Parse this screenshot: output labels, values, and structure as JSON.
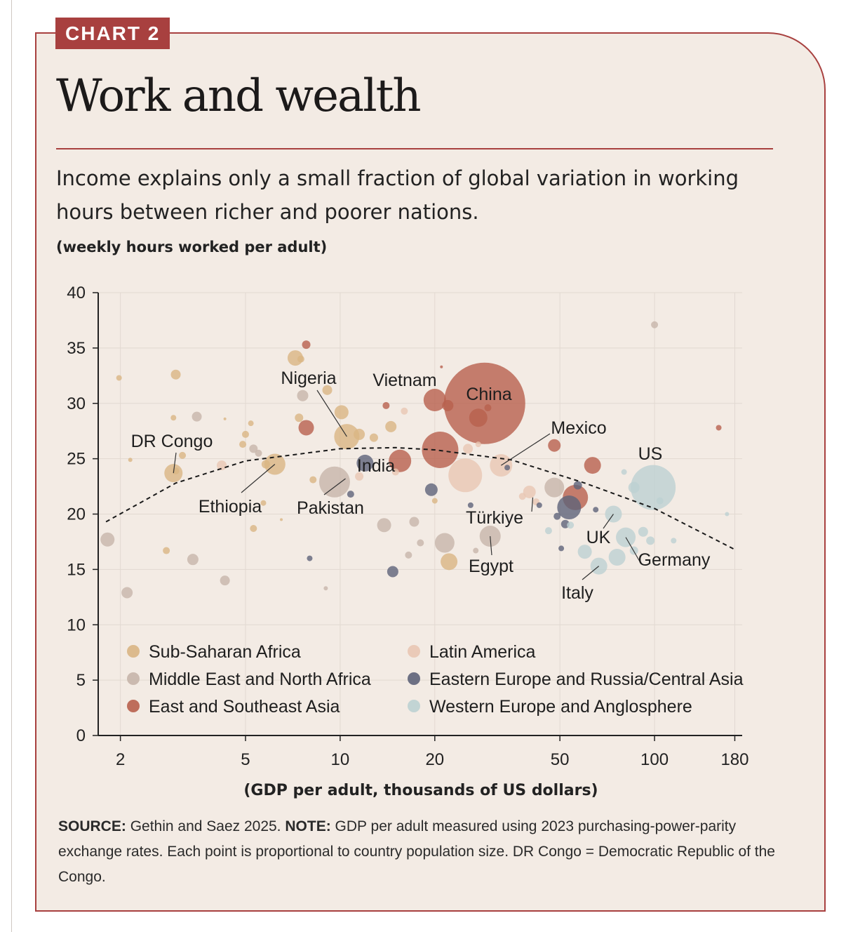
{
  "badge": "CHART 2",
  "title": "Work and wealth",
  "subtitle": "Income explains only a small fraction of global variation in working hours between richer and poorer nations.",
  "unit_label": "(weekly hours worked per adult)",
  "footer": {
    "source_label": "SOURCE:",
    "source_text": "Gethin and Saez 2025.",
    "note_label": "NOTE:",
    "note_text": "GDP per adult measured using 2023 purchasing-power-parity exchange rates. Each point is proportional to country population size. DR Congo = Democratic Republic of the Congo."
  },
  "chart_data": {
    "type": "scatter",
    "title": "Work and wealth",
    "xlabel": "(GDP per adult, thousands of US dollars)",
    "ylabel": "(weekly hours worked per adult)",
    "x_scale": "log",
    "xlim": [
      1.7,
      190
    ],
    "ylim": [
      0,
      40
    ],
    "x_ticks": [
      2,
      5,
      10,
      20,
      50,
      100,
      180
    ],
    "y_ticks": [
      0,
      5,
      10,
      15,
      20,
      25,
      30,
      35,
      40
    ],
    "grid": "vertical and horizontal, light",
    "legend_position": "bottom-left inside plot",
    "colors": {
      "ssa": "#d9b583",
      "mena": "#c7b5aa",
      "esa": "#b8604d",
      "latam": "#e9c7b3",
      "eeca": "#5e6379",
      "weu": "#bdd1d2"
    },
    "legend": [
      {
        "key": "ssa",
        "label": "Sub-Saharan Africa"
      },
      {
        "key": "mena",
        "label": "Middle East and North Africa"
      },
      {
        "key": "esa",
        "label": "East and Southeast Asia"
      },
      {
        "key": "latam",
        "label": "Latin America"
      },
      {
        "key": "eeca",
        "label": "Eastern Europe and Russia/Central Asia"
      },
      {
        "key": "weu",
        "label": "Western Europe and Anglosphere"
      }
    ],
    "trend": [
      [
        1.8,
        19.3
      ],
      [
        3,
        22.8
      ],
      [
        5,
        24.8
      ],
      [
        10,
        25.9
      ],
      [
        15,
        26.0
      ],
      [
        20,
        25.8
      ],
      [
        35,
        24.9
      ],
      [
        60,
        22.8
      ],
      [
        100,
        20.5
      ],
      [
        180,
        16.8
      ]
    ],
    "labels": [
      {
        "text": "DR Congo",
        "x": 2.95,
        "y": 23.7
      },
      {
        "text": "Ethiopia",
        "x": 6.2,
        "y": 24.5
      },
      {
        "text": "Nigeria",
        "x": 10.5,
        "y": 27.0
      },
      {
        "text": "Pakistan",
        "x": 10.4,
        "y": 23.2
      },
      {
        "text": "India",
        "x": 13.0,
        "y": 24.5
      },
      {
        "text": "Vietnam",
        "x": 20.0,
        "y": 30.3
      },
      {
        "text": "China",
        "x": 28.8,
        "y": 30.0
      },
      {
        "text": "Mexico",
        "x": 32.5,
        "y": 24.4
      },
      {
        "text": "Türkiye",
        "x": 41.0,
        "y": 21.5
      },
      {
        "text": "Egypt",
        "x": 30.0,
        "y": 18.0
      },
      {
        "text": "US",
        "x": 99.0,
        "y": 22.4
      },
      {
        "text": "UK",
        "x": 74.0,
        "y": 20.0
      },
      {
        "text": "Germany",
        "x": 81.0,
        "y": 17.9
      },
      {
        "text": "Italy",
        "x": 66.5,
        "y": 15.3
      }
    ],
    "points": [
      {
        "x": 1.98,
        "y": 32.3,
        "r": 4,
        "g": "ssa"
      },
      {
        "x": 3.0,
        "y": 32.6,
        "r": 7,
        "g": "ssa"
      },
      {
        "x": 2.95,
        "y": 23.7,
        "r": 13,
        "g": "ssa"
      },
      {
        "x": 3.0,
        "y": 23.9,
        "r": 5,
        "g": "ssa"
      },
      {
        "x": 3.15,
        "y": 25.3,
        "r": 5,
        "g": "ssa"
      },
      {
        "x": 2.95,
        "y": 28.7,
        "r": 4,
        "g": "ssa"
      },
      {
        "x": 2.15,
        "y": 24.9,
        "r": 3,
        "g": "ssa"
      },
      {
        "x": 2.8,
        "y": 16.7,
        "r": 5,
        "g": "ssa"
      },
      {
        "x": 4.3,
        "y": 28.6,
        "r": 2,
        "g": "ssa"
      },
      {
        "x": 5.0,
        "y": 27.2,
        "r": 5,
        "g": "ssa"
      },
      {
        "x": 5.2,
        "y": 28.2,
        "r": 4,
        "g": "ssa"
      },
      {
        "x": 4.9,
        "y": 26.3,
        "r": 5,
        "g": "ssa"
      },
      {
        "x": 6.2,
        "y": 24.5,
        "r": 15,
        "g": "ssa"
      },
      {
        "x": 5.8,
        "y": 24.5,
        "r": 6,
        "g": "ssa"
      },
      {
        "x": 5.3,
        "y": 18.7,
        "r": 5,
        "g": "ssa"
      },
      {
        "x": 5.7,
        "y": 21.0,
        "r": 4,
        "g": "ssa"
      },
      {
        "x": 7.2,
        "y": 34.1,
        "r": 11,
        "g": "ssa"
      },
      {
        "x": 7.5,
        "y": 34.0,
        "r": 5,
        "g": "ssa"
      },
      {
        "x": 7.4,
        "y": 28.7,
        "r": 6,
        "g": "ssa"
      },
      {
        "x": 9.1,
        "y": 31.2,
        "r": 7,
        "g": "ssa"
      },
      {
        "x": 10.1,
        "y": 29.2,
        "r": 10,
        "g": "ssa"
      },
      {
        "x": 10.5,
        "y": 27.0,
        "r": 18,
        "g": "ssa"
      },
      {
        "x": 11.5,
        "y": 27.2,
        "r": 8,
        "g": "ssa"
      },
      {
        "x": 8.2,
        "y": 23.1,
        "r": 5,
        "g": "ssa"
      },
      {
        "x": 12.8,
        "y": 26.9,
        "r": 6,
        "g": "ssa"
      },
      {
        "x": 14.5,
        "y": 27.9,
        "r": 8,
        "g": "ssa"
      },
      {
        "x": 22.2,
        "y": 15.7,
        "r": 12,
        "g": "ssa"
      },
      {
        "x": 20.0,
        "y": 21.2,
        "r": 4,
        "g": "ssa"
      },
      {
        "x": 6.5,
        "y": 19.5,
        "r": 2,
        "g": "ssa"
      },
      {
        "x": 1.82,
        "y": 17.7,
        "r": 10,
        "g": "mena"
      },
      {
        "x": 2.1,
        "y": 12.9,
        "r": 8,
        "g": "mena"
      },
      {
        "x": 3.4,
        "y": 15.9,
        "r": 8,
        "g": "mena"
      },
      {
        "x": 3.5,
        "y": 28.8,
        "r": 7,
        "g": "mena"
      },
      {
        "x": 4.3,
        "y": 14.0,
        "r": 7,
        "g": "mena"
      },
      {
        "x": 5.3,
        "y": 25.9,
        "r": 6,
        "g": "mena"
      },
      {
        "x": 5.5,
        "y": 25.5,
        "r": 5,
        "g": "mena"
      },
      {
        "x": 7.6,
        "y": 30.7,
        "r": 8,
        "g": "mena"
      },
      {
        "x": 9.6,
        "y": 22.9,
        "r": 22,
        "g": "mena"
      },
      {
        "x": 13.8,
        "y": 19.0,
        "r": 10,
        "g": "mena"
      },
      {
        "x": 16.5,
        "y": 16.3,
        "r": 5,
        "g": "mena"
      },
      {
        "x": 17.2,
        "y": 19.3,
        "r": 7,
        "g": "mena"
      },
      {
        "x": 18.0,
        "y": 17.4,
        "r": 5,
        "g": "mena"
      },
      {
        "x": 21.5,
        "y": 17.4,
        "r": 14,
        "g": "mena"
      },
      {
        "x": 30.0,
        "y": 18.0,
        "r": 15,
        "g": "mena"
      },
      {
        "x": 27.0,
        "y": 16.7,
        "r": 4,
        "g": "mena"
      },
      {
        "x": 48.0,
        "y": 22.4,
        "r": 14,
        "g": "mena"
      },
      {
        "x": 100.0,
        "y": 37.1,
        "r": 5,
        "g": "mena"
      },
      {
        "x": 9.0,
        "y": 13.3,
        "r": 3,
        "g": "mena"
      },
      {
        "x": 7.8,
        "y": 35.3,
        "r": 6,
        "g": "esa"
      },
      {
        "x": 7.8,
        "y": 27.8,
        "r": 11,
        "g": "esa"
      },
      {
        "x": 15.5,
        "y": 24.8,
        "r": 16,
        "g": "esa"
      },
      {
        "x": 14.0,
        "y": 29.8,
        "r": 5,
        "g": "esa"
      },
      {
        "x": 20.0,
        "y": 30.3,
        "r": 16,
        "g": "esa"
      },
      {
        "x": 22.0,
        "y": 29.8,
        "r": 8,
        "g": "esa"
      },
      {
        "x": 20.8,
        "y": 25.8,
        "r": 26,
        "g": "esa"
      },
      {
        "x": 28.8,
        "y": 30.0,
        "r": 58,
        "g": "esa"
      },
      {
        "x": 27.5,
        "y": 28.7,
        "r": 13,
        "g": "esa"
      },
      {
        "x": 29.5,
        "y": 29.6,
        "r": 5,
        "g": "esa"
      },
      {
        "x": 48.0,
        "y": 26.2,
        "r": 9,
        "g": "esa"
      },
      {
        "x": 56.0,
        "y": 21.5,
        "r": 18,
        "g": "esa"
      },
      {
        "x": 63.5,
        "y": 24.4,
        "r": 12,
        "g": "esa"
      },
      {
        "x": 160.0,
        "y": 27.8,
        "r": 4,
        "g": "esa"
      },
      {
        "x": 21.0,
        "y": 33.3,
        "r": 2,
        "g": "esa"
      },
      {
        "x": 4.2,
        "y": 24.4,
        "r": 7,
        "g": "latam"
      },
      {
        "x": 11.5,
        "y": 23.4,
        "r": 6,
        "g": "latam"
      },
      {
        "x": 15.0,
        "y": 23.8,
        "r": 5,
        "g": "latam"
      },
      {
        "x": 16.0,
        "y": 29.3,
        "r": 5,
        "g": "latam"
      },
      {
        "x": 25.0,
        "y": 23.5,
        "r": 24,
        "g": "latam"
      },
      {
        "x": 25.5,
        "y": 25.9,
        "r": 7,
        "g": "latam"
      },
      {
        "x": 27.5,
        "y": 26.3,
        "r": 4,
        "g": "latam"
      },
      {
        "x": 32.5,
        "y": 24.4,
        "r": 16,
        "g": "latam"
      },
      {
        "x": 38.0,
        "y": 21.6,
        "r": 5,
        "g": "latam"
      },
      {
        "x": 40.0,
        "y": 22.0,
        "r": 9,
        "g": "latam"
      },
      {
        "x": 42.0,
        "y": 21.1,
        "r": 5,
        "g": "latam"
      },
      {
        "x": 12.0,
        "y": 24.6,
        "r": 12,
        "g": "eeca"
      },
      {
        "x": 10.8,
        "y": 21.8,
        "r": 5,
        "g": "eeca"
      },
      {
        "x": 14.7,
        "y": 14.8,
        "r": 8,
        "g": "eeca"
      },
      {
        "x": 19.5,
        "y": 22.2,
        "r": 9,
        "g": "eeca"
      },
      {
        "x": 8.0,
        "y": 16.0,
        "r": 4,
        "g": "eeca"
      },
      {
        "x": 34.0,
        "y": 24.2,
        "r": 4,
        "g": "eeca"
      },
      {
        "x": 26.0,
        "y": 20.8,
        "r": 4,
        "g": "eeca"
      },
      {
        "x": 53.5,
        "y": 20.6,
        "r": 17,
        "g": "eeca"
      },
      {
        "x": 52.0,
        "y": 19.1,
        "r": 6,
        "g": "eeca"
      },
      {
        "x": 57.0,
        "y": 22.6,
        "r": 6,
        "g": "eeca"
      },
      {
        "x": 49.0,
        "y": 19.8,
        "r": 5,
        "g": "eeca"
      },
      {
        "x": 43.0,
        "y": 20.8,
        "r": 4,
        "g": "eeca"
      },
      {
        "x": 50.5,
        "y": 16.9,
        "r": 4,
        "g": "eeca"
      },
      {
        "x": 65.0,
        "y": 20.4,
        "r": 4,
        "g": "eeca"
      },
      {
        "x": 99.0,
        "y": 22.4,
        "r": 32,
        "g": "weu"
      },
      {
        "x": 74.0,
        "y": 20.0,
        "r": 12,
        "g": "weu"
      },
      {
        "x": 81.0,
        "y": 17.9,
        "r": 14,
        "g": "weu"
      },
      {
        "x": 66.5,
        "y": 15.3,
        "r": 12,
        "g": "weu"
      },
      {
        "x": 60.0,
        "y": 16.6,
        "r": 10,
        "g": "weu"
      },
      {
        "x": 76.0,
        "y": 16.1,
        "r": 12,
        "g": "weu"
      },
      {
        "x": 86.0,
        "y": 22.4,
        "r": 8,
        "g": "weu"
      },
      {
        "x": 92.0,
        "y": 18.4,
        "r": 7,
        "g": "weu"
      },
      {
        "x": 97.0,
        "y": 17.6,
        "r": 6,
        "g": "weu"
      },
      {
        "x": 86.0,
        "y": 16.7,
        "r": 6,
        "g": "weu"
      },
      {
        "x": 104.0,
        "y": 21.2,
        "r": 5,
        "g": "weu"
      },
      {
        "x": 115.0,
        "y": 17.6,
        "r": 4,
        "g": "weu"
      },
      {
        "x": 80.0,
        "y": 23.8,
        "r": 4,
        "g": "weu"
      },
      {
        "x": 46.0,
        "y": 18.5,
        "r": 5,
        "g": "weu"
      },
      {
        "x": 54.0,
        "y": 19.0,
        "r": 5,
        "g": "weu"
      },
      {
        "x": 170.0,
        "y": 20.0,
        "r": 3,
        "g": "weu"
      }
    ]
  }
}
